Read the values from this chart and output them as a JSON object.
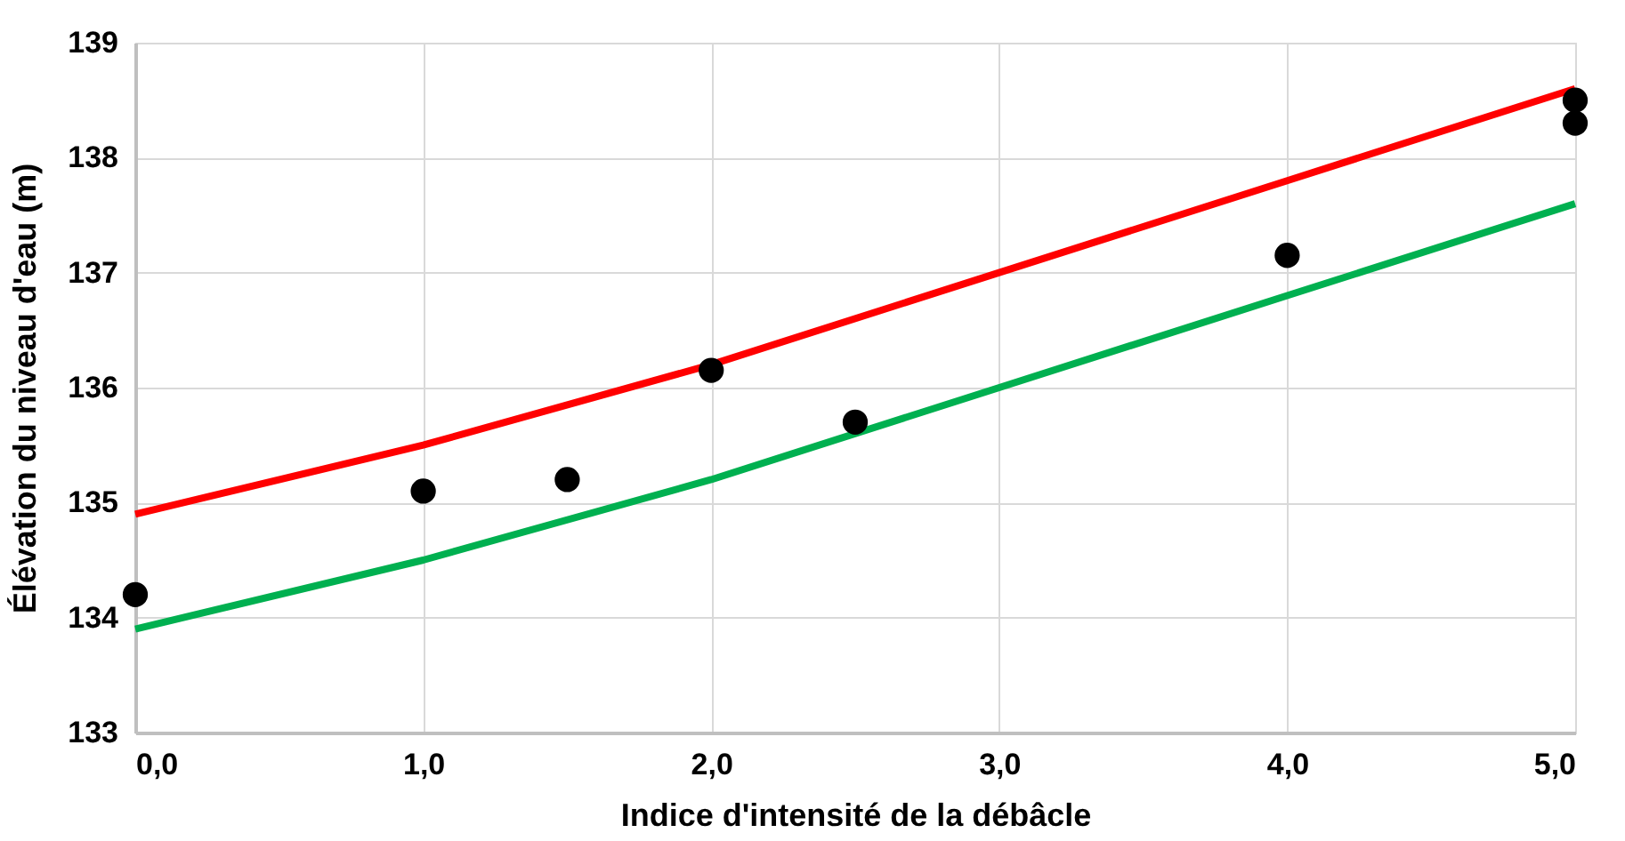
{
  "chart_data": {
    "type": "line",
    "xlabel": "Indice d'intensité de la débâcle",
    "ylabel": "Élévation du niveau d'eau (m)",
    "x": [
      0,
      1,
      2,
      3,
      4,
      5
    ],
    "series": [
      {
        "color": "#ff0000",
        "values": [
          134.9,
          135.5,
          136.2,
          137.0,
          137.8,
          138.6
        ]
      },
      {
        "color": "#00b050",
        "values": [
          133.9,
          134.5,
          135.2,
          136.0,
          136.8,
          137.6
        ]
      },
      {
        "type": "scatter",
        "marker": "circle",
        "color": "#000000",
        "x": [
          0,
          1,
          1.5,
          2,
          2.5,
          4,
          5,
          5
        ],
        "values": [
          134.2,
          135.1,
          135.2,
          136.15,
          135.7,
          137.15,
          138.5,
          138.3
        ]
      }
    ],
    "xlim": [
      0,
      5
    ],
    "ylim": [
      133,
      139
    ],
    "xticks": [
      {
        "value": 0,
        "label": "0,0"
      },
      {
        "value": 1,
        "label": "1,0"
      },
      {
        "value": 2,
        "label": "2,0"
      },
      {
        "value": 3,
        "label": "3,0"
      },
      {
        "value": 4,
        "label": "4,0"
      },
      {
        "value": 5,
        "label": "5,0"
      }
    ],
    "yticks": [
      133,
      134,
      135,
      136,
      137,
      138,
      139
    ],
    "grid": true,
    "marker": "none",
    "line_style": "solid"
  }
}
